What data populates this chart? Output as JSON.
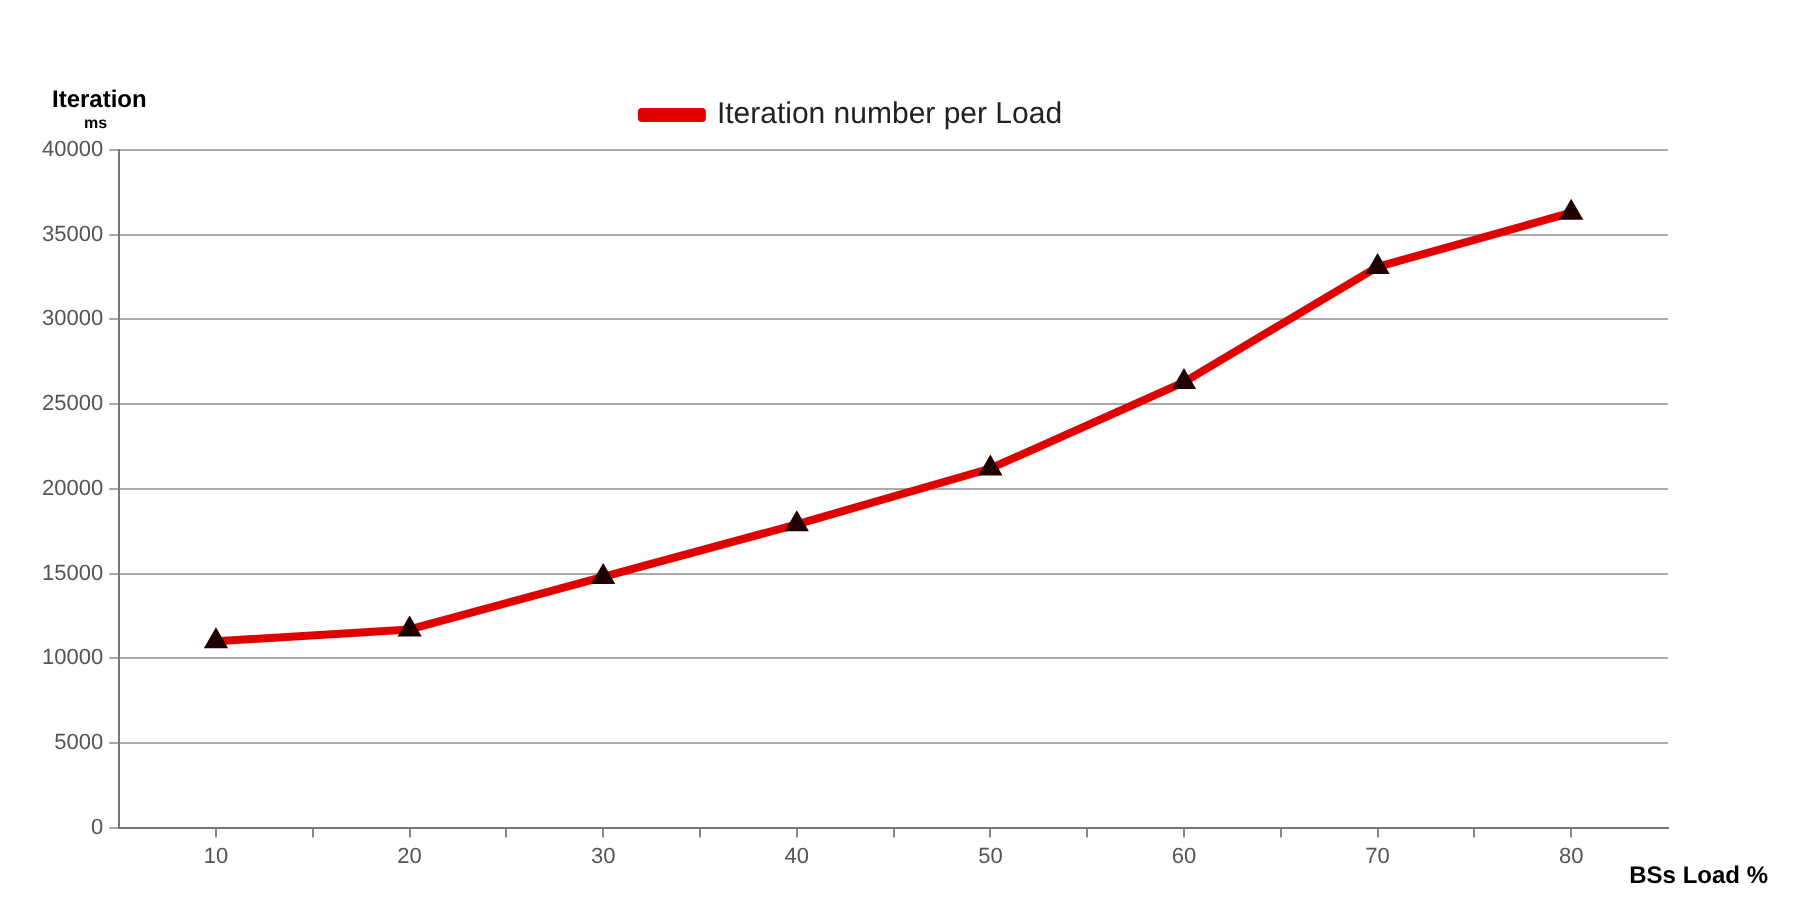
{
  "chart_data": {
    "type": "line",
    "xlabel": "BSs Load %",
    "ylabel": "Iteration",
    "annotations": [
      "ms"
    ],
    "x": [
      10,
      20,
      30,
      40,
      50,
      60,
      70,
      80
    ],
    "series": [
      {
        "name": "Iteration number per Load",
        "color": "#e00000",
        "values": [
          11000,
          11700,
          14800,
          17900,
          21200,
          26300,
          33100,
          36300
        ]
      }
    ],
    "xlim": [
      5,
      85
    ],
    "xticks": [
      10,
      {
        "value": 15,
        "label": null
      },
      20,
      {
        "value": 25,
        "label": null
      },
      30,
      {
        "value": 35,
        "label": null
      },
      40,
      {
        "value": 45,
        "label": null
      },
      50,
      {
        "value": 55,
        "label": null
      },
      60,
      {
        "value": 65,
        "label": null
      },
      70,
      {
        "value": 75,
        "label": null
      },
      80
    ],
    "ylim": [
      0,
      40000
    ],
    "yticks": [
      0,
      5000,
      10000,
      15000,
      20000,
      25000,
      30000,
      35000,
      40000
    ],
    "grid": "y",
    "legend": "top",
    "marker": "triangle",
    "line_style": "solid"
  }
}
